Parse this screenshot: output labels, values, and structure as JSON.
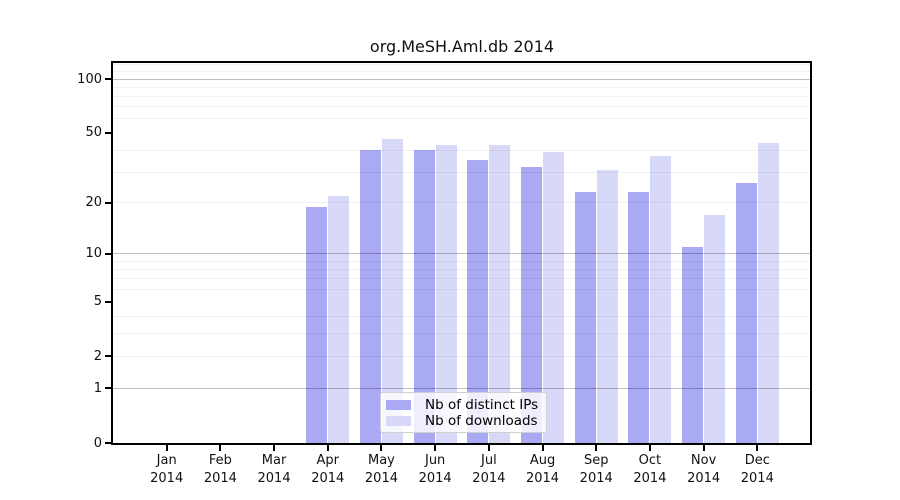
{
  "title": "org.MeSH.Aml.db 2014",
  "chart_data": {
    "type": "bar",
    "title": "org.MeSH.Aml.db 2014",
    "categories": [
      "Jan",
      "Feb",
      "Mar",
      "Apr",
      "May",
      "Jun",
      "Jul",
      "Aug",
      "Sep",
      "Oct",
      "Nov",
      "Dec"
    ],
    "x_tick_year": "2014",
    "series": [
      {
        "name": "Nb of distinct IPs",
        "color": "#a9a9f4",
        "values": [
          0,
          0,
          0,
          19,
          40,
          40,
          35,
          32,
          23,
          23,
          11,
          26
        ]
      },
      {
        "name": "Nb of downloads",
        "color": "#d8d8f9",
        "values": [
          0,
          0,
          0,
          22,
          46,
          43,
          43,
          39,
          31,
          37,
          17,
          44
        ]
      }
    ],
    "y_scale": "log10(1+x)",
    "y_tick_values": [
      0,
      1,
      2,
      5,
      10,
      20,
      50,
      100
    ],
    "ylim": [
      0,
      125
    ],
    "grid": {
      "major": [
        1,
        10,
        100
      ],
      "minor": [
        2,
        3,
        4,
        6,
        7,
        8,
        9,
        20,
        30,
        40,
        60,
        70,
        80,
        90,
        110,
        120
      ],
      "orientation": "horizontal"
    },
    "legend": {
      "position": "bottom-center"
    },
    "colors": {
      "bar_distinct_ips": "#a9a9f4",
      "bar_downloads": "#d8d8f9",
      "grid_major": "#bfbfbf",
      "grid_minor": "#f0f0f0",
      "axis": "#000000",
      "background": "#ffffff"
    }
  }
}
